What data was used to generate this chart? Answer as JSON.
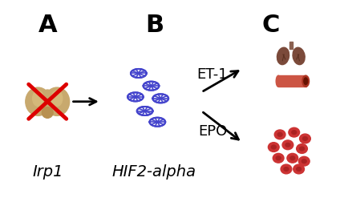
{
  "background_color": "#ffffff",
  "label_A": "A",
  "label_B": "B",
  "label_C": "C",
  "text_Irp1": "Irp1",
  "text_HIF2": "HIF2-alpha",
  "text_ET1": "ET-1",
  "text_EPO": "EPO",
  "label_fontsize": 22,
  "sublabel_fontsize": 13,
  "arrow_color": "#000000",
  "red_cross_color": "#dd0000",
  "dna_color": "#4444cc",
  "kidney_color": "#c8a96e",
  "kidney_dark": "#b89050",
  "kidney_light": "#d4b87a",
  "lung_color": "#7b4a3a",
  "lung_dark": "#5a3020",
  "lung_trachea": "#8a6050",
  "vessel_color": "#cc5544",
  "vessel_dark": "#aa3322",
  "vessel_hole": "#661100",
  "rbc_color": "#cc3333",
  "rbc_dark": "#aa2222"
}
